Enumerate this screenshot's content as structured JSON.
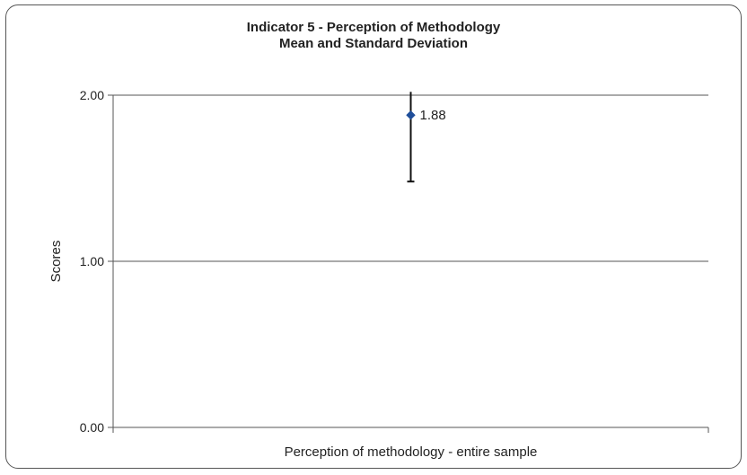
{
  "chart_data": {
    "type": "scatter",
    "title": "Indicator 5 - Perception of Methodology",
    "subtitle": "Mean and Standard Deviation",
    "xlabel": "Perception of methodology - entire sample",
    "ylabel": "Scores",
    "ylim": [
      0,
      2
    ],
    "yticks": [
      "0.00",
      "1.00",
      "2.00"
    ],
    "grid": true,
    "series": [
      {
        "points": [
          {
            "y": 1.88,
            "label": "1.88",
            "error_low": 1.48,
            "error_high": 2.02
          }
        ]
      }
    ]
  },
  "colors": {
    "marker": "#1f4e9a",
    "axis": "#555555",
    "gridline": "#555555",
    "error_bar": "#111111"
  }
}
